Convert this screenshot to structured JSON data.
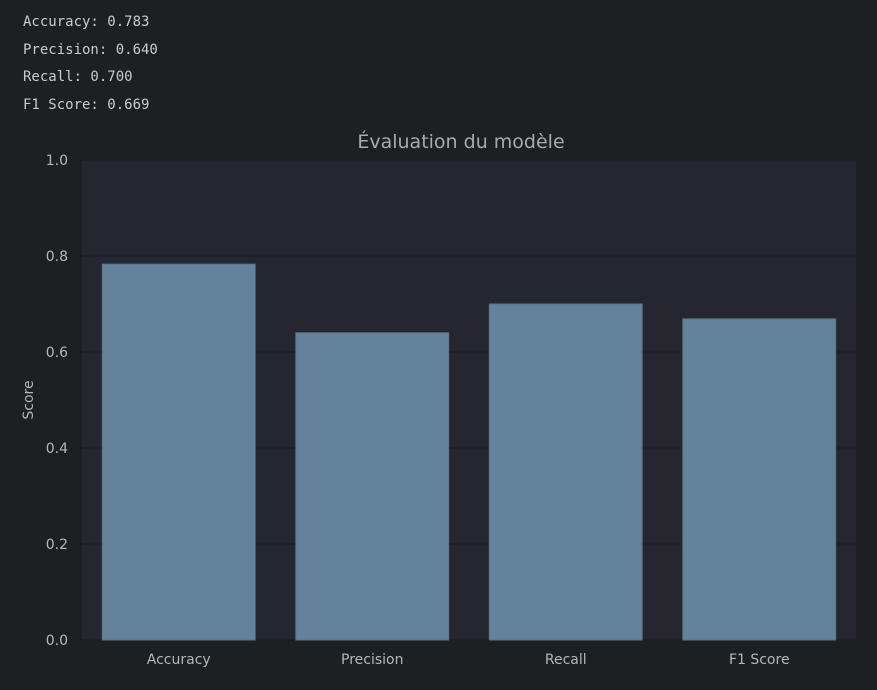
{
  "console": {
    "lines": [
      "Accuracy: 0.783",
      "Precision: 0.640",
      "Recall: 0.700",
      "F1 Score: 0.669"
    ]
  },
  "colors": {
    "background": "#1e1f22",
    "plot_background": "#252630",
    "bar_fill": "#64839a",
    "bar_stroke": "#5a7689",
    "grid": "#1a1b20",
    "text": "#b4b6ba"
  },
  "chart_data": {
    "type": "bar",
    "title": "Évaluation du modèle",
    "xlabel": "",
    "ylabel": "Score",
    "categories": [
      "Accuracy",
      "Precision",
      "Recall",
      "F1 Score"
    ],
    "values": [
      0.783,
      0.64,
      0.7,
      0.669
    ],
    "ylim": [
      0,
      1.0
    ],
    "yticks": [
      "0.0",
      "0.2",
      "0.4",
      "0.6",
      "0.8",
      "1.0"
    ],
    "grid": true,
    "legend": "none"
  }
}
